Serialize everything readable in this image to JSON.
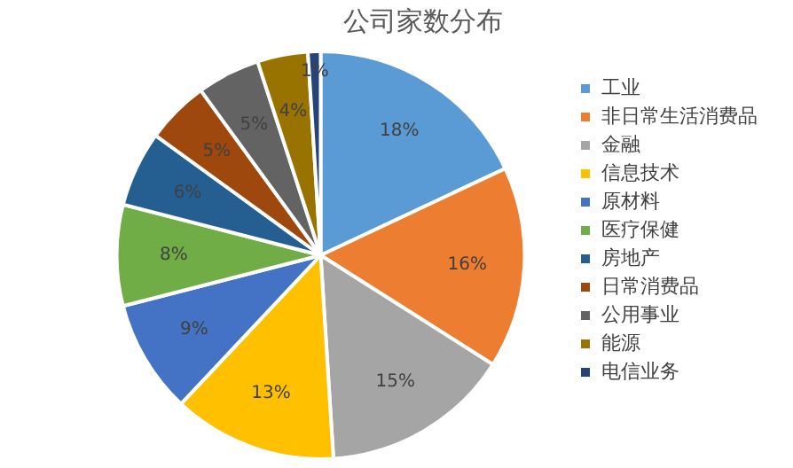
{
  "chart_data": {
    "type": "pie",
    "title": "公司家数分布",
    "categories": [
      "工业",
      "非日常生活消费品",
      "金融",
      "信息技术",
      "原材料",
      "医疗保健",
      "房地产",
      "日常消费品",
      "公用事业",
      "能源",
      "电信业务"
    ],
    "values": [
      18,
      16,
      15,
      13,
      9,
      8,
      6,
      5,
      5,
      4,
      1
    ],
    "value_labels": [
      "18%",
      "16%",
      "15%",
      "13%",
      "9%",
      "8%",
      "6%",
      "5%",
      "5%",
      "4%",
      "1%"
    ],
    "colors": [
      "#5b9bd5",
      "#ed7d31",
      "#a5a5a5",
      "#ffc000",
      "#4472c4",
      "#70ad47",
      "#255e91",
      "#9e480e",
      "#636363",
      "#997300",
      "#264478"
    ],
    "legend": "right"
  }
}
